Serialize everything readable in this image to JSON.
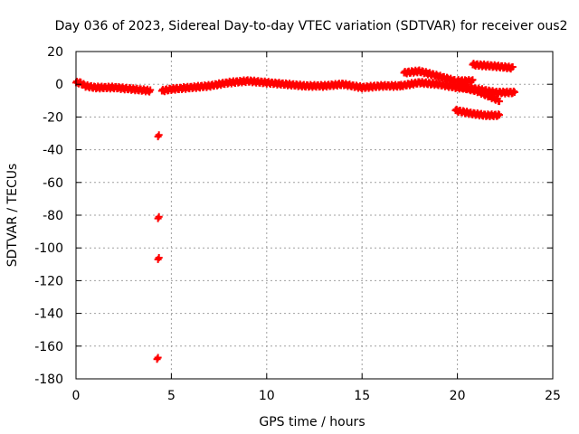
{
  "chart_data": {
    "type": "scatter",
    "title": "Day 036 of 2023, Sidereal Day-to-day VTEC variation (SDTVAR) for receiver ous2",
    "xlabel": "GPS time / hours",
    "ylabel": "SDTVAR / TECUs",
    "xlim": [
      0,
      25
    ],
    "ylim": [
      -180,
      20
    ],
    "x_ticks": [
      0,
      5,
      10,
      15,
      20,
      25
    ],
    "y_ticks": [
      20,
      0,
      -20,
      -40,
      -60,
      -80,
      -100,
      -120,
      -140,
      -160,
      -180
    ],
    "grid": true,
    "marker_color": "#ff0000",
    "marker": "plus",
    "segments": [
      {
        "name": "main-trace",
        "x_start": 0.0,
        "x_end": 3.9,
        "x_step": 0.05,
        "knots": [
          [
            0,
            1
          ],
          [
            0.2,
            1
          ],
          [
            0.5,
            -1
          ],
          [
            1,
            -2
          ],
          [
            2,
            -2
          ],
          [
            3,
            -3
          ],
          [
            3.9,
            -4
          ]
        ]
      },
      {
        "name": "main-trace-2",
        "x_start": 4.5,
        "x_end": 17.0,
        "x_step": 0.05,
        "knots": [
          [
            4.5,
            -4
          ],
          [
            5,
            -3
          ],
          [
            6,
            -2
          ],
          [
            7,
            -1
          ],
          [
            8,
            1
          ],
          [
            9,
            2
          ],
          [
            10,
            1
          ],
          [
            11,
            0
          ],
          [
            12,
            -1
          ],
          [
            13,
            -1
          ],
          [
            14,
            0
          ],
          [
            15,
            -2
          ],
          [
            16,
            -1
          ],
          [
            17,
            -1
          ]
        ]
      },
      {
        "name": "lower-trace",
        "x_start": 17.0,
        "x_end": 23.0,
        "x_step": 0.05,
        "knots": [
          [
            17,
            -1
          ],
          [
            18,
            1
          ],
          [
            19,
            0
          ],
          [
            20,
            -2
          ],
          [
            21,
            -3
          ],
          [
            22,
            -5
          ],
          [
            23,
            -5
          ]
        ]
      },
      {
        "name": "upper-arc",
        "x_start": 17.2,
        "x_end": 19.9,
        "x_step": 0.05,
        "knots": [
          [
            17.2,
            7
          ],
          [
            18,
            8
          ],
          [
            19,
            5
          ],
          [
            19.9,
            2
          ]
        ]
      },
      {
        "name": "upper-arc-2",
        "x_start": 20.0,
        "x_end": 20.8,
        "x_step": 0.05,
        "knots": [
          [
            20,
            2
          ],
          [
            20.8,
            2
          ]
        ]
      },
      {
        "name": "descending-branch",
        "x_start": 20.0,
        "x_end": 22.2,
        "x_step": 0.05,
        "knots": [
          [
            20,
            -1
          ],
          [
            21,
            -4
          ],
          [
            22.2,
            -10
          ]
        ]
      },
      {
        "name": "top-trace",
        "x_start": 20.8,
        "x_end": 22.9,
        "x_step": 0.05,
        "knots": [
          [
            20.8,
            12
          ],
          [
            22,
            11
          ],
          [
            22.9,
            10
          ]
        ]
      },
      {
        "name": "bottom-trace",
        "x_start": 19.9,
        "x_end": 22.2,
        "x_step": 0.05,
        "knots": [
          [
            19.9,
            -16
          ],
          [
            20.8,
            -18
          ],
          [
            21.5,
            -19
          ],
          [
            22.2,
            -19
          ]
        ]
      }
    ],
    "outliers": [
      {
        "x": 4.3,
        "y": -32
      },
      {
        "x": 4.3,
        "y": -82
      },
      {
        "x": 4.3,
        "y": -107
      },
      {
        "x": 4.25,
        "y": -168
      }
    ]
  }
}
